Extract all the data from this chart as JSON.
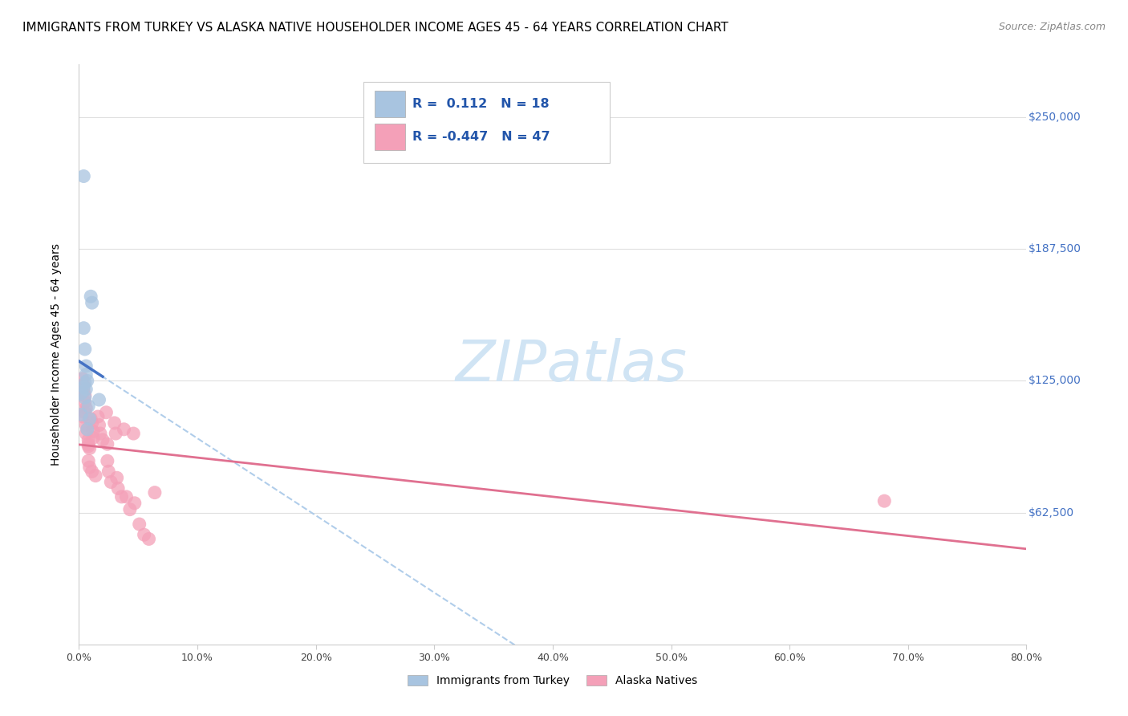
{
  "title": "IMMIGRANTS FROM TURKEY VS ALASKA NATIVE HOUSEHOLDER INCOME AGES 45 - 64 YEARS CORRELATION CHART",
  "source": "Source: ZipAtlas.com",
  "ylabel": "Householder Income Ages 45 - 64 years",
  "xlabel_ticks": [
    "0.0%",
    "10.0%",
    "20.0%",
    "30.0%",
    "40.0%",
    "50.0%",
    "60.0%",
    "70.0%",
    "80.0%"
  ],
  "ytick_labels": [
    "$62,500",
    "$125,000",
    "$187,500",
    "$250,000"
  ],
  "ytick_values": [
    62500,
    125000,
    187500,
    250000
  ],
  "xlim": [
    0.0,
    0.8
  ],
  "ylim": [
    0,
    275000
  ],
  "legend_entries": [
    {
      "label": "Immigrants from Turkey",
      "color": "#a8c4e0",
      "R": "0.112",
      "N": "18"
    },
    {
      "label": "Alaska Natives",
      "color": "#f4a0b0",
      "R": "-0.447",
      "N": "47"
    }
  ],
  "turkey_points": [
    [
      0.004,
      222000
    ],
    [
      0.01,
      165000
    ],
    [
      0.011,
      162000
    ],
    [
      0.004,
      150000
    ],
    [
      0.005,
      140000
    ],
    [
      0.006,
      132000
    ],
    [
      0.006,
      128000
    ],
    [
      0.007,
      125000
    ],
    [
      0.005,
      124000
    ],
    [
      0.004,
      122000
    ],
    [
      0.006,
      121000
    ],
    [
      0.002,
      119000
    ],
    [
      0.005,
      117000
    ],
    [
      0.008,
      113000
    ],
    [
      0.002,
      109000
    ],
    [
      0.009,
      107000
    ],
    [
      0.007,
      102000
    ],
    [
      0.017,
      116000
    ]
  ],
  "alaska_points": [
    [
      0.003,
      126000
    ],
    [
      0.004,
      123000
    ],
    [
      0.004,
      120000
    ],
    [
      0.005,
      118000
    ],
    [
      0.005,
      115000
    ],
    [
      0.006,
      112000
    ],
    [
      0.005,
      110000
    ],
    [
      0.003,
      108000
    ],
    [
      0.006,
      104000
    ],
    [
      0.007,
      102000
    ],
    [
      0.006,
      100000
    ],
    [
      0.008,
      97000
    ],
    [
      0.008,
      95000
    ],
    [
      0.008,
      94000
    ],
    [
      0.009,
      93000
    ],
    [
      0.01,
      107000
    ],
    [
      0.011,
      105000
    ],
    [
      0.012,
      101000
    ],
    [
      0.012,
      98000
    ],
    [
      0.008,
      87000
    ],
    [
      0.009,
      84000
    ],
    [
      0.011,
      82000
    ],
    [
      0.014,
      80000
    ],
    [
      0.016,
      108000
    ],
    [
      0.017,
      104000
    ],
    [
      0.018,
      100000
    ],
    [
      0.02,
      97000
    ],
    [
      0.023,
      110000
    ],
    [
      0.024,
      95000
    ],
    [
      0.024,
      87000
    ],
    [
      0.025,
      82000
    ],
    [
      0.027,
      77000
    ],
    [
      0.03,
      105000
    ],
    [
      0.031,
      100000
    ],
    [
      0.032,
      79000
    ],
    [
      0.033,
      74000
    ],
    [
      0.036,
      70000
    ],
    [
      0.038,
      102000
    ],
    [
      0.04,
      70000
    ],
    [
      0.043,
      64000
    ],
    [
      0.046,
      100000
    ],
    [
      0.047,
      67000
    ],
    [
      0.051,
      57000
    ],
    [
      0.055,
      52000
    ],
    [
      0.059,
      50000
    ],
    [
      0.064,
      72000
    ],
    [
      0.68,
      68000
    ]
  ],
  "turkey_line_color": "#4472c4",
  "turkey_scatter_color": "#a8c4e0",
  "alaska_line_color": "#e07090",
  "alaska_scatter_color": "#f4a0b8",
  "dashed_line_color": "#a8c8e8",
  "grid_color": "#e0e0e0",
  "background_color": "#ffffff",
  "title_fontsize": 11,
  "axis_label_fontsize": 10,
  "watermark_color": "#d0e4f4",
  "watermark_text": "ZIPatlas"
}
